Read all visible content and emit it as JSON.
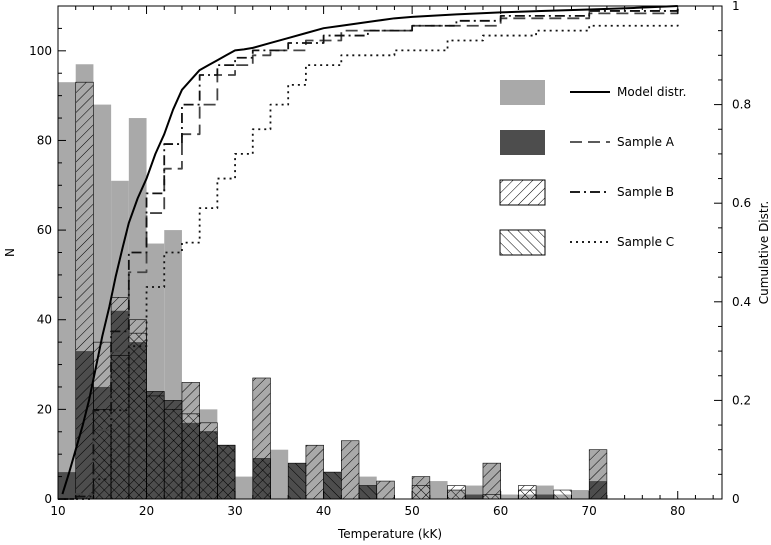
{
  "chart_data": {
    "type": "bar",
    "xlabel": "Temperature (kK)",
    "ylabel": "N",
    "y2label": "Cumulative Distr.",
    "xlim": [
      10,
      85
    ],
    "ylim": [
      0,
      110
    ],
    "y2lim": [
      0,
      1
    ],
    "x_ticks": [
      10,
      20,
      30,
      40,
      50,
      60,
      70,
      80
    ],
    "y_ticks": [
      0,
      20,
      40,
      60,
      80,
      100
    ],
    "y2_ticks": [
      0,
      0.2,
      0.4,
      0.6,
      0.8,
      1
    ],
    "x_tick_labels": [
      "10",
      "20",
      "30",
      "40",
      "50",
      "60",
      "70",
      "80"
    ],
    "y_tick_labels": [
      "0",
      "20",
      "40",
      "60",
      "80",
      "100"
    ],
    "y2_tick_labels": [
      "0",
      "0.2",
      "0.4",
      "0.6",
      "0.8",
      "1"
    ],
    "bin_width": 2,
    "histograms": [
      {
        "name": "Model distr.",
        "style": "solid-fill",
        "color": "#a9a9a9",
        "bins": [
          [
            10,
            93
          ],
          [
            12,
            97
          ],
          [
            14,
            88
          ],
          [
            16,
            71
          ],
          [
            18,
            85
          ],
          [
            20,
            57
          ],
          [
            22,
            60
          ],
          [
            24,
            26
          ],
          [
            26,
            20
          ],
          [
            28,
            12
          ],
          [
            30,
            5
          ],
          [
            32,
            27
          ],
          [
            34,
            11
          ],
          [
            36,
            7
          ],
          [
            38,
            12
          ],
          [
            40,
            4
          ],
          [
            42,
            13
          ],
          [
            44,
            5
          ],
          [
            46,
            4
          ],
          [
            50,
            5
          ],
          [
            52,
            4
          ],
          [
            54,
            2
          ],
          [
            56,
            3
          ],
          [
            58,
            8
          ],
          [
            60,
            1
          ],
          [
            62,
            1
          ],
          [
            64,
            3
          ],
          [
            66,
            1
          ],
          [
            68,
            2
          ],
          [
            70,
            11
          ]
        ]
      },
      {
        "name": "Sample A",
        "style": "solid-fill",
        "color": "#4d4d4d",
        "bins": [
          [
            10,
            6
          ],
          [
            12,
            33
          ],
          [
            14,
            25
          ],
          [
            16,
            42
          ],
          [
            18,
            35
          ],
          [
            20,
            24
          ],
          [
            22,
            22
          ],
          [
            24,
            17
          ],
          [
            26,
            15
          ],
          [
            28,
            12
          ],
          [
            32,
            9
          ],
          [
            36,
            8
          ],
          [
            40,
            6
          ],
          [
            44,
            3
          ],
          [
            56,
            1
          ],
          [
            64,
            1
          ],
          [
            70,
            4
          ]
        ]
      },
      {
        "name": "Sample B",
        "style": "hatch-diagonal",
        "color": "#000000",
        "bins": [
          [
            12,
            93
          ],
          [
            14,
            35
          ],
          [
            16,
            45
          ],
          [
            18,
            40
          ],
          [
            20,
            24
          ],
          [
            22,
            22
          ],
          [
            24,
            26
          ],
          [
            26,
            17
          ],
          [
            28,
            12
          ],
          [
            32,
            27
          ],
          [
            38,
            12
          ],
          [
            42,
            13
          ],
          [
            46,
            4
          ],
          [
            50,
            5
          ],
          [
            54,
            3
          ],
          [
            58,
            8
          ],
          [
            62,
            3
          ],
          [
            70,
            11
          ]
        ]
      },
      {
        "name": "Sample C",
        "style": "hatch-cross",
        "color": "#000000",
        "bins": [
          [
            14,
            20
          ],
          [
            16,
            32
          ],
          [
            18,
            37
          ],
          [
            20,
            23
          ],
          [
            22,
            20
          ],
          [
            24,
            19
          ],
          [
            26,
            15
          ],
          [
            28,
            12
          ],
          [
            32,
            9
          ],
          [
            36,
            8
          ],
          [
            40,
            6
          ],
          [
            44,
            3
          ],
          [
            50,
            3
          ],
          [
            54,
            2
          ],
          [
            58,
            1
          ],
          [
            62,
            2
          ],
          [
            66,
            2
          ]
        ]
      }
    ],
    "cumulative": [
      {
        "name": "Model distr.",
        "style": "solid",
        "points": [
          [
            10.5,
            0.01
          ],
          [
            11.2,
            0.05
          ],
          [
            12,
            0.1
          ],
          [
            12.8,
            0.15
          ],
          [
            13.5,
            0.2
          ],
          [
            14.2,
            0.26
          ],
          [
            15,
            0.33
          ],
          [
            15.8,
            0.39
          ],
          [
            16.5,
            0.45
          ],
          [
            17.3,
            0.51
          ],
          [
            18,
            0.56
          ],
          [
            19,
            0.61
          ],
          [
            20,
            0.65
          ],
          [
            21,
            0.7
          ],
          [
            22,
            0.74
          ],
          [
            23,
            0.79
          ],
          [
            24,
            0.83
          ],
          [
            25,
            0.85
          ],
          [
            26,
            0.87
          ],
          [
            27,
            0.88
          ],
          [
            28,
            0.89
          ],
          [
            29,
            0.9
          ],
          [
            30,
            0.91
          ],
          [
            31,
            0.912
          ],
          [
            32,
            0.915
          ],
          [
            34,
            0.925
          ],
          [
            36,
            0.935
          ],
          [
            38,
            0.945
          ],
          [
            40,
            0.955
          ],
          [
            42,
            0.96
          ],
          [
            44,
            0.965
          ],
          [
            46,
            0.97
          ],
          [
            48,
            0.975
          ],
          [
            50,
            0.978
          ],
          [
            55,
            0.983
          ],
          [
            60,
            0.987
          ],
          [
            65,
            0.99
          ],
          [
            70,
            0.993
          ],
          [
            75,
            0.996
          ],
          [
            80,
            1
          ]
        ]
      },
      {
        "name": "Sample A",
        "style": "dashed",
        "points": [
          [
            10,
            0
          ],
          [
            12,
            0
          ],
          [
            12,
            0.01
          ],
          [
            14,
            0.01
          ],
          [
            14,
            0.14
          ],
          [
            16,
            0.14
          ],
          [
            16,
            0.3
          ],
          [
            18,
            0.3
          ],
          [
            18,
            0.46
          ],
          [
            20,
            0.46
          ],
          [
            20,
            0.58
          ],
          [
            22,
            0.58
          ],
          [
            22,
            0.67
          ],
          [
            24,
            0.67
          ],
          [
            24,
            0.74
          ],
          [
            26,
            0.74
          ],
          [
            26,
            0.8
          ],
          [
            28,
            0.8
          ],
          [
            28,
            0.86
          ],
          [
            30,
            0.86
          ],
          [
            30,
            0.88
          ],
          [
            32,
            0.88
          ],
          [
            32,
            0.9
          ],
          [
            34,
            0.9
          ],
          [
            34,
            0.91
          ],
          [
            38,
            0.91
          ],
          [
            38,
            0.93
          ],
          [
            42,
            0.93
          ],
          [
            42,
            0.95
          ],
          [
            50,
            0.95
          ],
          [
            50,
            0.96
          ],
          [
            60,
            0.96
          ],
          [
            60,
            0.975
          ],
          [
            70,
            0.975
          ],
          [
            70,
            0.985
          ],
          [
            80,
            0.985
          ],
          [
            80,
            1
          ]
        ]
      },
      {
        "name": "Sample B",
        "style": "dashdot",
        "points": [
          [
            10,
            0
          ],
          [
            12,
            0
          ],
          [
            12,
            0.005
          ],
          [
            14,
            0.005
          ],
          [
            14,
            0.18
          ],
          [
            16,
            0.18
          ],
          [
            16,
            0.34
          ],
          [
            18,
            0.34
          ],
          [
            18,
            0.5
          ],
          [
            20,
            0.5
          ],
          [
            20,
            0.62
          ],
          [
            22,
            0.62
          ],
          [
            22,
            0.72
          ],
          [
            24,
            0.72
          ],
          [
            24,
            0.8
          ],
          [
            26,
            0.8
          ],
          [
            26,
            0.86
          ],
          [
            28,
            0.86
          ],
          [
            28,
            0.88
          ],
          [
            30,
            0.88
          ],
          [
            30,
            0.895
          ],
          [
            32,
            0.895
          ],
          [
            32,
            0.91
          ],
          [
            36,
            0.91
          ],
          [
            36,
            0.925
          ],
          [
            40,
            0.925
          ],
          [
            40,
            0.94
          ],
          [
            45,
            0.94
          ],
          [
            45,
            0.95
          ],
          [
            50,
            0.95
          ],
          [
            50,
            0.96
          ],
          [
            55,
            0.96
          ],
          [
            55,
            0.97
          ],
          [
            60,
            0.97
          ],
          [
            60,
            0.98
          ],
          [
            70,
            0.98
          ],
          [
            70,
            0.99
          ],
          [
            80,
            0.99
          ],
          [
            80,
            1
          ]
        ]
      },
      {
        "name": "Sample C",
        "style": "dotted",
        "points": [
          [
            10,
            0
          ],
          [
            14,
            0
          ],
          [
            14,
            0.04
          ],
          [
            16,
            0.04
          ],
          [
            16,
            0.18
          ],
          [
            18,
            0.18
          ],
          [
            18,
            0.31
          ],
          [
            20,
            0.31
          ],
          [
            20,
            0.43
          ],
          [
            22,
            0.43
          ],
          [
            22,
            0.5
          ],
          [
            24,
            0.5
          ],
          [
            24,
            0.52
          ],
          [
            26,
            0.52
          ],
          [
            26,
            0.59
          ],
          [
            28,
            0.59
          ],
          [
            28,
            0.65
          ],
          [
            30,
            0.65
          ],
          [
            30,
            0.7
          ],
          [
            32,
            0.7
          ],
          [
            32,
            0.75
          ],
          [
            34,
            0.75
          ],
          [
            34,
            0.8
          ],
          [
            36,
            0.8
          ],
          [
            36,
            0.84
          ],
          [
            38,
            0.84
          ],
          [
            38,
            0.88
          ],
          [
            42,
            0.88
          ],
          [
            42,
            0.9
          ],
          [
            48,
            0.9
          ],
          [
            48,
            0.91
          ],
          [
            54,
            0.91
          ],
          [
            54,
            0.93
          ],
          [
            58,
            0.93
          ],
          [
            58,
            0.94
          ],
          [
            64,
            0.94
          ],
          [
            64,
            0.95
          ],
          [
            70,
            0.95
          ],
          [
            70,
            0.96
          ],
          [
            80,
            0.96
          ],
          [
            80,
            0.97
          ]
        ]
      }
    ],
    "legend": {
      "placement": "top-right",
      "entries": [
        {
          "fill_label": "Model distr.",
          "line_label": "Model distr.",
          "fill_style": "solid-light",
          "line_style": "solid"
        },
        {
          "fill_label": "Sample A",
          "line_label": "Sample A",
          "fill_style": "solid-dark",
          "line_style": "dashed"
        },
        {
          "fill_label": "Sample B",
          "line_label": "Sample B",
          "fill_style": "hatch-diagonal",
          "line_style": "dashdot"
        },
        {
          "fill_label": "Sample C",
          "line_label": "Sample C",
          "fill_style": "hatch-cross",
          "line_style": "dotted"
        }
      ]
    }
  }
}
